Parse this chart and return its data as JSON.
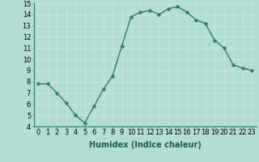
{
  "x": [
    0,
    1,
    2,
    3,
    4,
    5,
    6,
    7,
    8,
    9,
    10,
    11,
    12,
    13,
    14,
    15,
    16,
    17,
    18,
    19,
    20,
    21,
    22,
    23
  ],
  "y": [
    7.8,
    7.8,
    7.0,
    6.1,
    5.0,
    4.3,
    5.8,
    7.3,
    8.5,
    11.2,
    13.8,
    14.2,
    14.35,
    14.0,
    14.5,
    14.7,
    14.2,
    13.5,
    13.2,
    11.7,
    11.0,
    9.5,
    9.2,
    9.0
  ],
  "line_color": "#2e7d6e",
  "marker_color": "#2e7d6e",
  "bg_color": "#b2ddd4",
  "grid_color": "#c8e8e0",
  "xlabel": "Humidex (Indice chaleur)",
  "ylim": [
    4,
    15
  ],
  "xlim": [
    -0.5,
    23.5
  ],
  "yticks": [
    4,
    5,
    6,
    7,
    8,
    9,
    10,
    11,
    12,
    13,
    14,
    15
  ],
  "xticks": [
    0,
    1,
    2,
    3,
    4,
    5,
    6,
    7,
    8,
    9,
    10,
    11,
    12,
    13,
    14,
    15,
    16,
    17,
    18,
    19,
    20,
    21,
    22,
    23
  ],
  "xlabel_fontsize": 7,
  "tick_fontsize": 6,
  "line_width": 1.0,
  "marker_size": 2.5
}
